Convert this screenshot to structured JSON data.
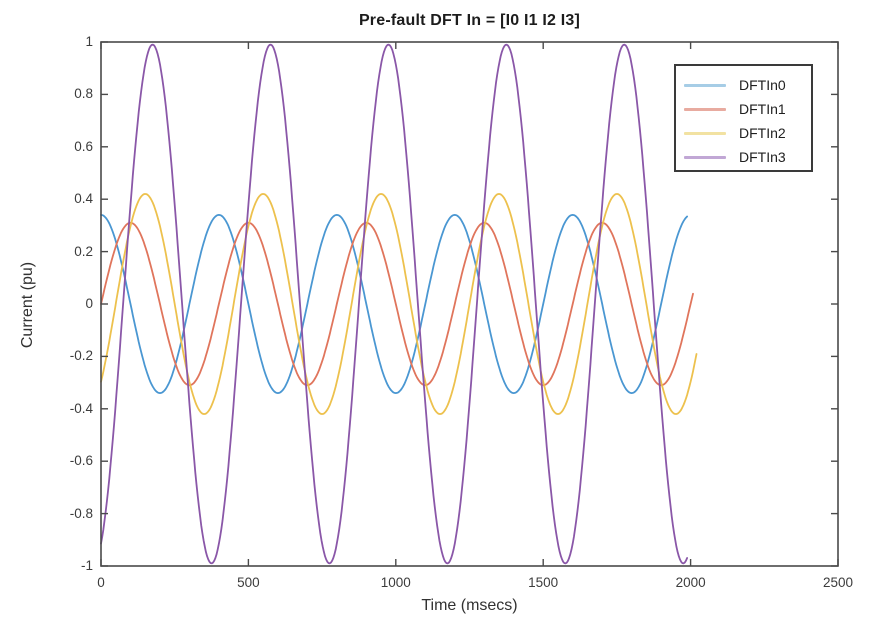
{
  "chart_data": {
    "type": "line",
    "title": "Pre-fault DFT In = [I0 I1 I2 I3]",
    "xlabel": "Time (msecs)",
    "ylabel": "Current (pu)",
    "xlim": [
      0,
      2500
    ],
    "ylim": [
      -1,
      1
    ],
    "xticks": [
      0,
      500,
      1000,
      1500,
      2000,
      2500
    ],
    "xtick_labels": [
      "0",
      "500",
      "1000",
      "1500",
      "2000",
      "2500"
    ],
    "yticks": [
      -1,
      -0.8,
      -0.6,
      -0.4,
      -0.2,
      0,
      0.2,
      0.4,
      0.6,
      0.8,
      1
    ],
    "ytick_labels": [
      "-1",
      "-0.8",
      "-0.6",
      "-0.4",
      "-0.2",
      "0",
      "0.2",
      "0.4",
      "0.6",
      "0.8",
      "1"
    ],
    "grid": false,
    "box": true,
    "legend_position": "northeast",
    "waveform_model": "y(t) = amplitude * sin(2*pi*t/period_ms + phase_deg)",
    "series": [
      {
        "name": "DFTIn0",
        "color": "#4a97d2",
        "legend_color": "#a6cde6",
        "amplitude": 0.34,
        "period_ms": 400,
        "phase_deg": 90,
        "t_start": 0,
        "t_end": 1990,
        "value_at_t0": 0.34,
        "first_peak_ms": 0
      },
      {
        "name": "DFTIn1",
        "color": "#e0755c",
        "legend_color": "#e8aba0",
        "amplitude": 0.31,
        "period_ms": 400,
        "phase_deg": 0,
        "t_start": 0,
        "t_end": 2010,
        "value_at_t0": 0.0,
        "first_peak_ms": 100
      },
      {
        "name": "DFTIn2",
        "color": "#edc14d",
        "legend_color": "#f2e2a2",
        "amplitude": 0.42,
        "period_ms": 400,
        "phase_deg": -45,
        "t_start": 0,
        "t_end": 2020,
        "value_at_t0": -0.3,
        "first_peak_ms": 150
      },
      {
        "name": "DFTIn3",
        "color": "#8a57a8",
        "legend_color": "#c1a7d5",
        "amplitude": 0.99,
        "period_ms": 400,
        "phase_deg": -67.5,
        "t_start": 0,
        "t_end": 1990,
        "value_at_t0": -0.92,
        "first_peak_ms": 175
      }
    ]
  }
}
